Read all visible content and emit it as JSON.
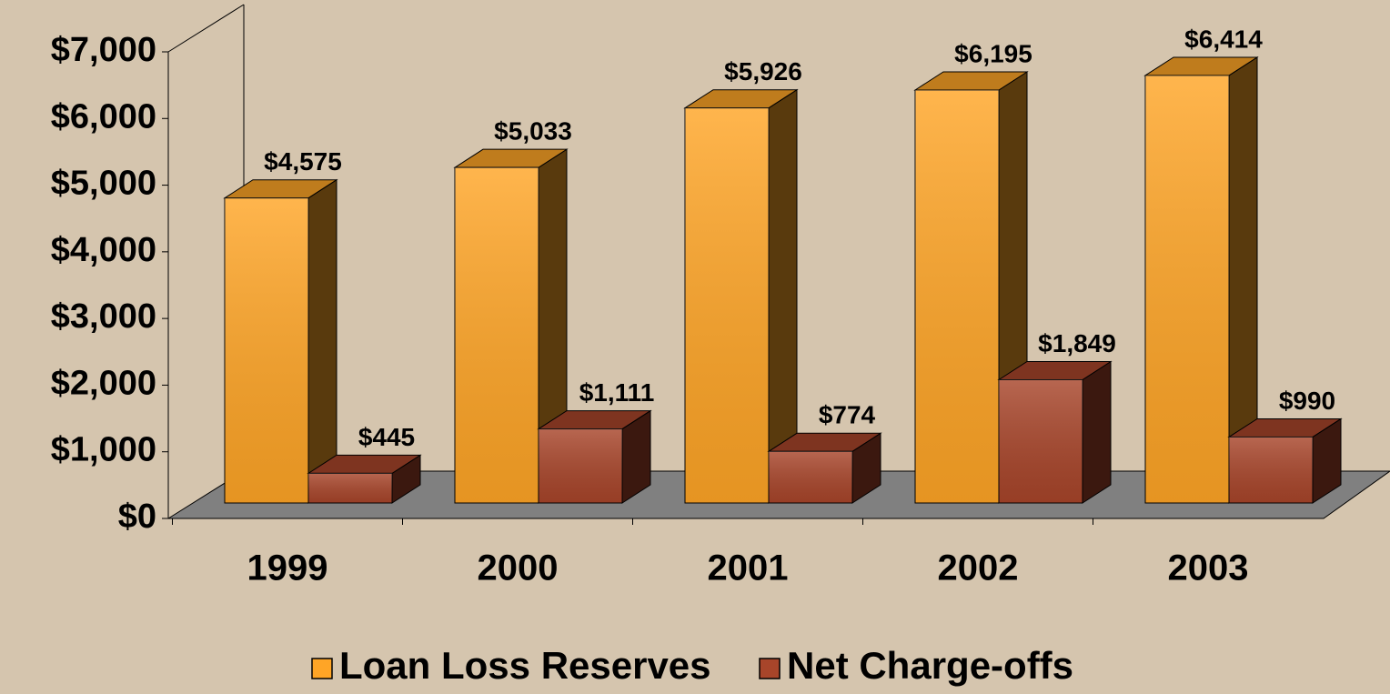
{
  "chart_data": {
    "type": "bar3d",
    "categories": [
      "1999",
      "2000",
      "2001",
      "2002",
      "2003"
    ],
    "series": [
      {
        "name": "Loan Loss Reserves",
        "color": "#ffa526",
        "values": [
          4575,
          5033,
          5926,
          6195,
          6414
        ],
        "value_labels": [
          "$4,575",
          "$5,033",
          "$5,926",
          "$6,195",
          "$6,414"
        ]
      },
      {
        "name": "Net Charge-offs",
        "color": "#a8452a",
        "values": [
          445,
          1111,
          774,
          1849,
          990
        ],
        "value_labels": [
          "$445",
          "$1,111",
          "$774",
          "$1,849",
          "$990"
        ]
      }
    ],
    "ylim": [
      0,
      7000
    ],
    "yticks": [
      {
        "value": 0,
        "label": "$0"
      },
      {
        "value": 1000,
        "label": "$1,000"
      },
      {
        "value": 2000,
        "label": "$2,000"
      },
      {
        "value": 3000,
        "label": "$3,000"
      },
      {
        "value": 4000,
        "label": "$4,000"
      },
      {
        "value": 5000,
        "label": "$5,000"
      },
      {
        "value": 6000,
        "label": "$6,000"
      },
      {
        "value": 7000,
        "label": "$7,000"
      }
    ],
    "legend": "bottom"
  }
}
